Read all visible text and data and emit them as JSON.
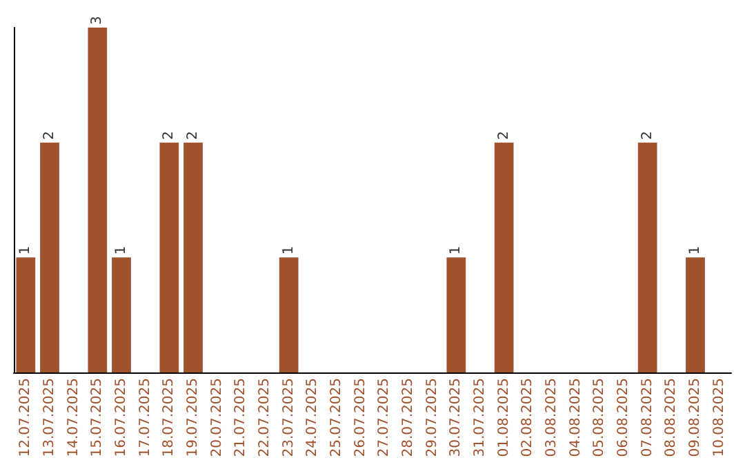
{
  "chart_data": {
    "type": "bar",
    "categories": [
      "12.07.2025",
      "13.07.2025",
      "14.07.2025",
      "15.07.2025",
      "16.07.2025",
      "17.07.2025",
      "18.07.2025",
      "19.07.2025",
      "20.07.2025",
      "21.07.2025",
      "22.07.2025",
      "23.07.2025",
      "24.07.2025",
      "25.07.2025",
      "26.07.2025",
      "27.07.2025",
      "28.07.2025",
      "29.07.2025",
      "30.07.2025",
      "31.07.2025",
      "01.08.2025",
      "02.08.2025",
      "03.08.2025",
      "04.08.2025",
      "05.08.2025",
      "06.08.2025",
      "07.08.2025",
      "08.08.2025",
      "09.08.2025",
      "10.08.2025"
    ],
    "values": [
      1,
      2,
      0,
      3,
      1,
      0,
      2,
      2,
      0,
      0,
      0,
      1,
      0,
      0,
      0,
      0,
      0,
      0,
      1,
      0,
      2,
      0,
      0,
      0,
      0,
      0,
      2,
      0,
      1,
      0
    ],
    "value_labels": [
      "1",
      "2",
      null,
      "3",
      "1",
      null,
      "2",
      "2",
      null,
      null,
      null,
      "1",
      null,
      null,
      null,
      null,
      null,
      null,
      "1",
      null,
      "2",
      null,
      null,
      null,
      null,
      null,
      "2",
      null,
      "1",
      null
    ],
    "color": "#a0522d"
  }
}
